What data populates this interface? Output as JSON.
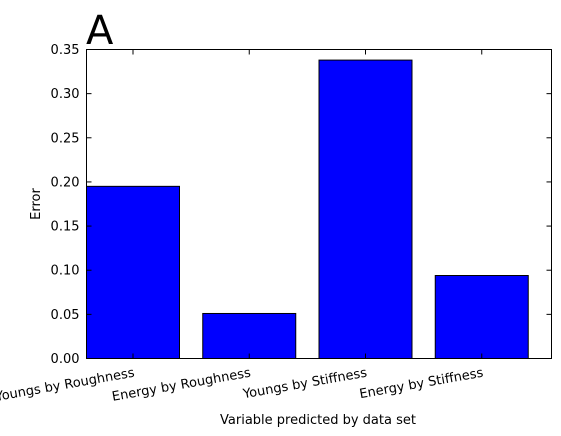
{
  "chart_data": {
    "type": "bar",
    "title": "A",
    "categories": [
      "Youngs by Roughness",
      "Energy by Roughness",
      "Youngs by Stiffness",
      "Energy by Stiffness"
    ],
    "values": [
      0.195,
      0.051,
      0.338,
      0.094
    ],
    "xlabel": "Variable predicted by data set",
    "ylabel": "Error",
    "ylim": [
      0,
      0.35
    ],
    "yticks": [
      "0.00",
      "0.05",
      "0.10",
      "0.15",
      "0.20",
      "0.25",
      "0.30",
      "0.35"
    ],
    "bar_color": "#0000ff",
    "bar_edge_color": "#000000",
    "grid": false
  }
}
